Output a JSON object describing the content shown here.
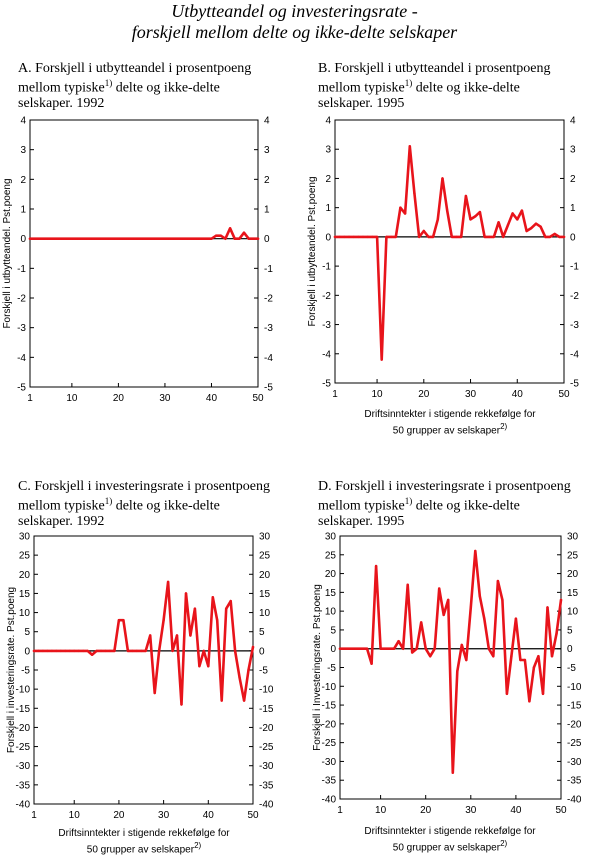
{
  "title": {
    "line1": "Utbytteandel og investeringsrate -",
    "line2": "forskjell mellom delte og ikke-delte selskaper"
  },
  "x_title": {
    "line1": "Driftsinntekter i stigende rekkefølge for",
    "line2": "50 grupper av selskaper",
    "note": "2)"
  },
  "footnote_marker": "1)",
  "colors": {
    "series": "#e8141b",
    "axis": "#000000",
    "zero_line": "#000000"
  },
  "chart_data": [
    {
      "id": "A",
      "type": "line",
      "title_lines": [
        "A.  Forskjell i utbytteandel i prosentpoeng",
        "mellom typiske",
        "  delte og ikke-delte",
        "selskaper.   1992"
      ],
      "ylabel": "Forskjell i utbytteandel. Pst.poeng",
      "xlim": [
        1,
        50
      ],
      "xticks": [
        1,
        10,
        20,
        30,
        40,
        50
      ],
      "ylim": [
        -5,
        4
      ],
      "yticks": [
        4,
        3,
        2,
        1,
        0,
        -1,
        -2,
        -3,
        -4,
        -5
      ],
      "x": [
        1,
        2,
        3,
        4,
        5,
        6,
        7,
        8,
        9,
        10,
        11,
        12,
        13,
        14,
        15,
        16,
        17,
        18,
        19,
        20,
        21,
        22,
        23,
        24,
        25,
        26,
        27,
        28,
        29,
        30,
        31,
        32,
        33,
        34,
        35,
        36,
        37,
        38,
        39,
        40,
        41,
        42,
        43,
        44,
        45,
        46,
        47,
        48,
        49,
        50
      ],
      "values": [
        0,
        0,
        0,
        0,
        0,
        0,
        0,
        0,
        0,
        0,
        0,
        0,
        0,
        0,
        0,
        0,
        0,
        0,
        0,
        0,
        0,
        0,
        0,
        0,
        0,
        0,
        0,
        0,
        0,
        0,
        0,
        0,
        0,
        0,
        0,
        0,
        0,
        0,
        0,
        0,
        0.1,
        0.1,
        0,
        0.35,
        0,
        0,
        0.2,
        0,
        0,
        0
      ]
    },
    {
      "id": "B",
      "type": "line",
      "title_lines": [
        "B.  Forskjell i utbytteandel i prosentpoeng",
        "mellom typiske",
        "  delte og ikke-delte",
        "selskaper.   1995"
      ],
      "ylabel": "Forskjell i utbytteandel. Pst.poeng",
      "xlim": [
        1,
        50
      ],
      "xticks": [
        1,
        10,
        20,
        30,
        40,
        50
      ],
      "ylim": [
        -5,
        4
      ],
      "yticks": [
        4,
        3,
        2,
        1,
        0,
        -1,
        -2,
        -3,
        -4,
        -5
      ],
      "x": [
        1,
        2,
        3,
        4,
        5,
        6,
        7,
        8,
        9,
        10,
        11,
        12,
        13,
        14,
        15,
        16,
        17,
        18,
        19,
        20,
        21,
        22,
        23,
        24,
        25,
        26,
        27,
        28,
        29,
        30,
        31,
        32,
        33,
        34,
        35,
        36,
        37,
        38,
        39,
        40,
        41,
        42,
        43,
        44,
        45,
        46,
        47,
        48,
        49,
        50
      ],
      "values": [
        0,
        0,
        0,
        0,
        0,
        0,
        0,
        0,
        0,
        0,
        -4.2,
        0,
        0,
        0,
        1.0,
        0.8,
        3.1,
        1.5,
        0,
        0.2,
        0,
        0,
        0.6,
        2.0,
        0.9,
        0,
        0,
        0,
        1.4,
        0.6,
        0.7,
        0.85,
        0,
        0,
        0,
        0.5,
        0,
        0.4,
        0.8,
        0.6,
        0.9,
        0.2,
        0.3,
        0.45,
        0.35,
        0,
        0,
        0.1,
        0,
        0
      ]
    },
    {
      "id": "C",
      "type": "line",
      "title_lines": [
        "C.  Forskjell i investeringsrate i prosentpoeng",
        "mellom typiske",
        "  delte og ikke-delte",
        "selskaper.   1992"
      ],
      "ylabel": "Forskjell i investeringsrate. Pst.poeng",
      "xlim": [
        1,
        50
      ],
      "xticks": [
        1,
        10,
        20,
        30,
        40,
        50
      ],
      "ylim": [
        -40,
        30
      ],
      "yticks": [
        30,
        25,
        20,
        15,
        10,
        5,
        0,
        -5,
        -10,
        -15,
        -20,
        -25,
        -30,
        -35,
        -40
      ],
      "x": [
        1,
        2,
        3,
        4,
        5,
        6,
        7,
        8,
        9,
        10,
        11,
        12,
        13,
        14,
        15,
        16,
        17,
        18,
        19,
        20,
        21,
        22,
        23,
        24,
        25,
        26,
        27,
        28,
        29,
        30,
        31,
        32,
        33,
        34,
        35,
        36,
        37,
        38,
        39,
        40,
        41,
        42,
        43,
        44,
        45,
        46,
        47,
        48,
        49,
        50
      ],
      "values": [
        0,
        0,
        0,
        0,
        0,
        0,
        0,
        0,
        0,
        0,
        0,
        0,
        0,
        -1,
        0,
        0,
        0,
        0,
        0,
        8,
        8,
        0,
        0,
        0,
        0,
        0,
        4,
        -11,
        0,
        8,
        18,
        0,
        4,
        -14,
        15,
        4,
        11,
        -4,
        0,
        -4,
        14,
        8,
        -13,
        11,
        13,
        0,
        -7,
        -13,
        -5,
        1
      ]
    },
    {
      "id": "D",
      "type": "line",
      "title_lines": [
        "D.  Forskjell i investeringsrate i prosentpoeng",
        "mellom typiske",
        "  delte og ikke-delte",
        "selskaper.   1995"
      ],
      "ylabel": "Forskjell i Investeringsrate. Pst.poeng",
      "xlim": [
        1,
        50
      ],
      "xticks": [
        1,
        10,
        20,
        30,
        40,
        50
      ],
      "ylim": [
        -40,
        30
      ],
      "yticks": [
        30,
        25,
        20,
        15,
        10,
        5,
        0,
        -5,
        -10,
        -15,
        -20,
        -25,
        -30,
        -35,
        -40
      ],
      "x": [
        1,
        2,
        3,
        4,
        5,
        6,
        7,
        8,
        9,
        10,
        11,
        12,
        13,
        14,
        15,
        16,
        17,
        18,
        19,
        20,
        21,
        22,
        23,
        24,
        25,
        26,
        27,
        28,
        29,
        30,
        31,
        32,
        33,
        34,
        35,
        36,
        37,
        38,
        39,
        40,
        41,
        42,
        43,
        44,
        45,
        46,
        47,
        48,
        49,
        50
      ],
      "values": [
        0,
        0,
        0,
        0,
        0,
        0,
        0,
        -4,
        22,
        0,
        0,
        0,
        0,
        2,
        0,
        17,
        -1,
        0,
        7,
        0,
        -2,
        0,
        16,
        9,
        13,
        -33,
        -6,
        1,
        -3,
        11,
        26,
        14,
        8,
        0,
        -2,
        18,
        13,
        -12,
        -2,
        8,
        -3,
        -3,
        -14,
        -5,
        -2,
        -12,
        11,
        -2,
        4,
        13
      ]
    }
  ]
}
